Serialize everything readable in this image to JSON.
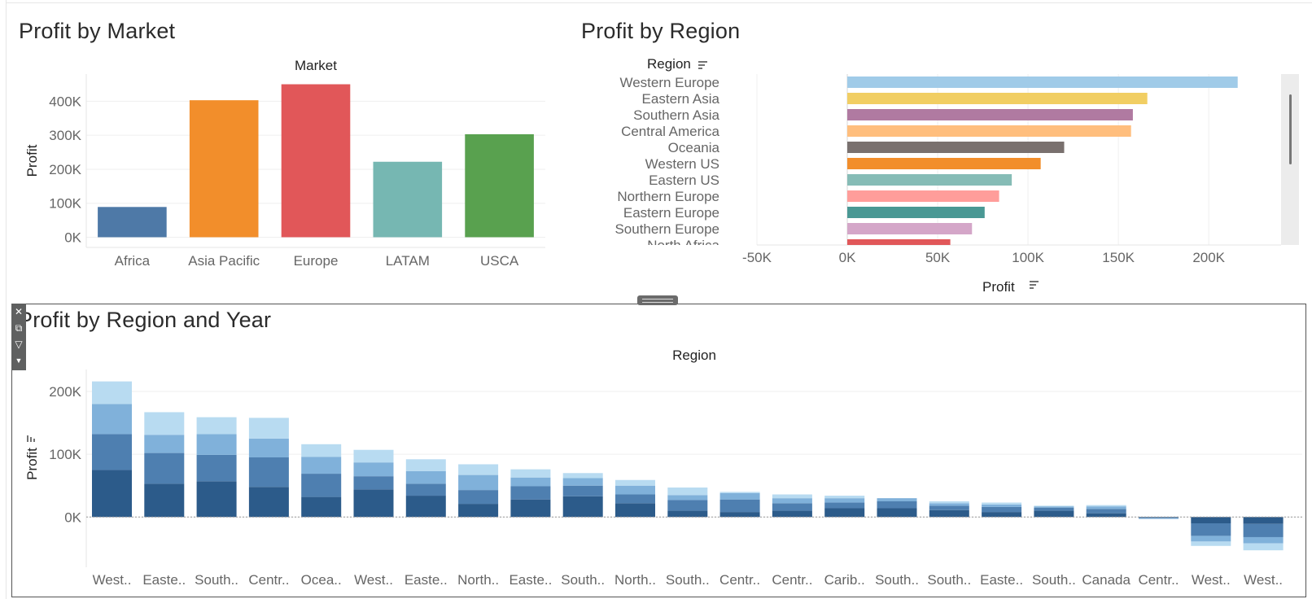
{
  "titles": {
    "market": "Profit by Market",
    "region": "Profit by Region",
    "region_year": "Profit by Region and Year"
  },
  "colors": {
    "market": [
      "#4e79a7",
      "#f28e2b",
      "#e15759",
      "#76b7b2",
      "#59a14f"
    ],
    "region": [
      "#a0cbe8",
      "#f1ce63",
      "#b07aa1",
      "#ffbe7d",
      "#79706e",
      "#f28e2b",
      "#86bcb6",
      "#ff9d9a",
      "#499894",
      "#d4a6c8",
      "#e15759"
    ],
    "year_stack": [
      "#2c5b8a",
      "#4e7fb0",
      "#80b1da",
      "#b8dbf1"
    ]
  },
  "chart_data": [
    {
      "id": "market",
      "type": "bar",
      "title": "Profit by Market",
      "header": "Market",
      "ylabel": "Profit",
      "categories": [
        "Africa",
        "Asia Pacific",
        "Europe",
        "LATAM",
        "USCA"
      ],
      "values": [
        89000,
        403000,
        450000,
        222000,
        303000
      ],
      "ylim": [
        -30000,
        480000
      ],
      "yticks": [
        0,
        100000,
        200000,
        300000,
        400000
      ],
      "ytick_labels": [
        "0K",
        "100K",
        "200K",
        "300K",
        "400K"
      ]
    },
    {
      "id": "region",
      "type": "bar",
      "orientation": "horizontal",
      "title": "Profit by Region",
      "row_header": "Region",
      "xlabel": "Profit",
      "categories": [
        "Western Europe",
        "Eastern Asia",
        "Southern Asia",
        "Central America",
        "Oceania",
        "Western US",
        "Eastern US",
        "Northern Europe",
        "Eastern Europe",
        "Southern Europe",
        "North Africa"
      ],
      "values": [
        216000,
        166000,
        158000,
        157000,
        120000,
        107000,
        91000,
        84000,
        76000,
        69000,
        57000
      ],
      "xlim": [
        -50000,
        240000
      ],
      "xticks": [
        -50000,
        0,
        50000,
        100000,
        150000,
        200000
      ],
      "xtick_labels": [
        "-50K",
        "0K",
        "50K",
        "100K",
        "150K",
        "200K"
      ]
    },
    {
      "id": "region_year",
      "type": "bar",
      "stacked": true,
      "title": "Profit by Region and Year",
      "header": "Region",
      "ylabel": "Profit",
      "categories": [
        "West..",
        "Easte..",
        "South..",
        "Centr..",
        "Ocea..",
        "West..",
        "Easte..",
        "North..",
        "Easte..",
        "South..",
        "North..",
        "South..",
        "Centr..",
        "Centr..",
        "Carib..",
        "South..",
        "South..",
        "Easte..",
        "South..",
        "Canada",
        "Centr..",
        "West..",
        "West.."
      ],
      "series": [
        {
          "values": [
            75000,
            53000,
            57000,
            48000,
            32000,
            44000,
            34000,
            21000,
            28000,
            33000,
            22000,
            10000,
            8000,
            10000,
            14000,
            14000,
            11000,
            8000,
            10000,
            6000,
            -1000,
            -10000,
            -11000
          ]
        },
        {
          "values": [
            57000,
            49000,
            42000,
            47000,
            37000,
            21000,
            19000,
            22000,
            21000,
            17000,
            14000,
            17000,
            20000,
            12000,
            9000,
            11000,
            7000,
            8000,
            5000,
            7000,
            -1000,
            -20000,
            -21000
          ]
        },
        {
          "values": [
            48000,
            29000,
            33000,
            30000,
            27000,
            22000,
            20000,
            24000,
            14000,
            12000,
            14000,
            8000,
            10000,
            8000,
            7000,
            5000,
            4000,
            4000,
            2000,
            4000,
            -1000,
            -9000,
            -10000
          ]
        },
        {
          "values": [
            36000,
            36000,
            27000,
            33000,
            20000,
            20000,
            19000,
            17000,
            13000,
            8000,
            9000,
            12000,
            2000,
            6000,
            4000,
            0,
            3000,
            3000,
            1000,
            2000,
            0,
            -7000,
            -11000
          ]
        }
      ],
      "ylim": [
        -80000,
        235000
      ],
      "yticks": [
        0,
        100000,
        200000
      ],
      "ytick_labels": [
        "0K",
        "100K",
        "200K"
      ]
    }
  ]
}
